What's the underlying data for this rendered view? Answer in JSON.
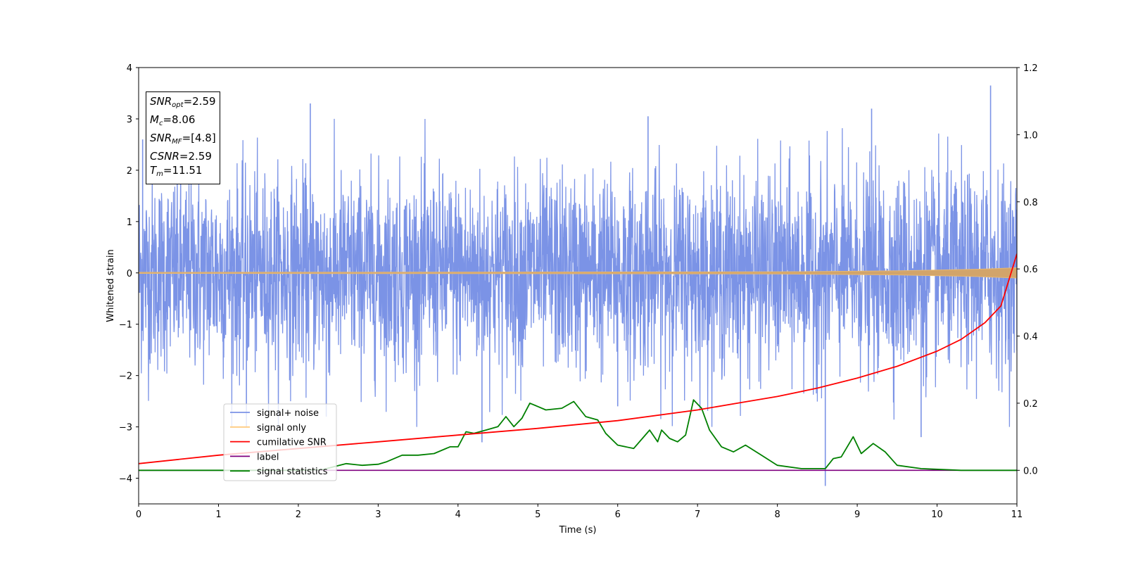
{
  "chart_data": {
    "type": "line",
    "xlabel": "Time (s)",
    "ylabel": "Whitened strain",
    "xlim": [
      0,
      11
    ],
    "ylim": [
      -4.5,
      4
    ],
    "y2lim": [
      -0.1,
      1.2
    ],
    "xticks": [
      "0",
      "1",
      "2",
      "3",
      "4",
      "5",
      "6",
      "7",
      "8",
      "9",
      "10",
      "11"
    ],
    "yticks": [
      "−4",
      "−3",
      "−2",
      "−1",
      "0",
      "1",
      "2",
      "3",
      "4"
    ],
    "y2ticks": [
      "0.0",
      "0.2",
      "0.4",
      "0.6",
      "0.8",
      "1.0",
      "1.2"
    ],
    "grid": false,
    "legend_position": "lower-left",
    "legend": [
      {
        "label": "signal+ noise",
        "color": "#7b93e6"
      },
      {
        "label": "signal only",
        "color": "#ffcc80"
      },
      {
        "label": "cumilative SNR",
        "color": "#ff0000"
      },
      {
        "label": "label",
        "color": "#800080"
      },
      {
        "label": "signal statistics",
        "color": "#008000"
      }
    ],
    "annotation": {
      "snr_opt": {
        "name": "SNR",
        "sub": "opt",
        "value": "=2.59"
      },
      "mc": {
        "name": "M",
        "sub": "c",
        "value": "=8.06"
      },
      "snr_mf": {
        "name": "SNR",
        "sub": "MF",
        "value": "=[4.8]"
      },
      "csnr": {
        "name": "CSNR",
        "value": "=2.59"
      },
      "tm": {
        "name": "T",
        "sub": "m",
        "value": "=11.51"
      }
    },
    "series": [
      {
        "name": "signal+ noise",
        "axis": "left",
        "kind": "noise",
        "description_stats": {
          "envelope_typical": [
            -2.0,
            2.0
          ],
          "min": -4.15,
          "max": 3.65
        },
        "spikes": [
          [
            2.15,
            3.3
          ],
          [
            6.38,
            3.05
          ],
          [
            9.18,
            3.2
          ],
          [
            10.67,
            3.65
          ],
          [
            0.05,
            2.6
          ],
          [
            4.3,
            -3.3
          ],
          [
            8.6,
            -4.15
          ],
          [
            9.8,
            -3.2
          ],
          [
            2.35,
            -2.8
          ],
          [
            6.0,
            -2.6
          ],
          [
            1.35,
            -3.0
          ]
        ]
      },
      {
        "name": "signal only",
        "axis": "left",
        "kind": "band",
        "points": [
          [
            0,
            0.01
          ],
          [
            5,
            0.015
          ],
          [
            8,
            0.02
          ],
          [
            9.5,
            0.04
          ],
          [
            10.5,
            0.07
          ],
          [
            11,
            0.1
          ]
        ]
      },
      {
        "name": "cumilative SNR",
        "axis": "right",
        "points": [
          [
            0,
            0.02
          ],
          [
            1,
            0.045
          ],
          [
            2,
            0.065
          ],
          [
            3,
            0.085
          ],
          [
            4,
            0.105
          ],
          [
            5,
            0.125
          ],
          [
            6,
            0.148
          ],
          [
            7,
            0.18
          ],
          [
            7.5,
            0.2
          ],
          [
            8,
            0.22
          ],
          [
            8.5,
            0.245
          ],
          [
            9,
            0.275
          ],
          [
            9.5,
            0.31
          ],
          [
            10,
            0.355
          ],
          [
            10.3,
            0.39
          ],
          [
            10.6,
            0.44
          ],
          [
            10.8,
            0.49
          ],
          [
            11,
            0.645
          ]
        ]
      },
      {
        "name": "label",
        "axis": "right",
        "points": [
          [
            0,
            0.0
          ],
          [
            11,
            0.0
          ]
        ]
      },
      {
        "name": "signal statistics",
        "axis": "right",
        "points": [
          [
            0,
            0.0
          ],
          [
            2.0,
            0.0
          ],
          [
            2.3,
            0.002
          ],
          [
            2.6,
            0.02
          ],
          [
            2.8,
            0.015
          ],
          [
            3.0,
            0.018
          ],
          [
            3.1,
            0.025
          ],
          [
            3.3,
            0.045
          ],
          [
            3.5,
            0.045
          ],
          [
            3.7,
            0.05
          ],
          [
            3.9,
            0.07
          ],
          [
            4.0,
            0.07
          ],
          [
            4.1,
            0.115
          ],
          [
            4.2,
            0.11
          ],
          [
            4.35,
            0.12
          ],
          [
            4.5,
            0.13
          ],
          [
            4.6,
            0.16
          ],
          [
            4.7,
            0.13
          ],
          [
            4.8,
            0.155
          ],
          [
            4.9,
            0.2
          ],
          [
            5.0,
            0.19
          ],
          [
            5.1,
            0.18
          ],
          [
            5.3,
            0.185
          ],
          [
            5.45,
            0.205
          ],
          [
            5.6,
            0.16
          ],
          [
            5.75,
            0.15
          ],
          [
            5.85,
            0.11
          ],
          [
            6.0,
            0.075
          ],
          [
            6.2,
            0.065
          ],
          [
            6.4,
            0.12
          ],
          [
            6.5,
            0.085
          ],
          [
            6.55,
            0.12
          ],
          [
            6.65,
            0.095
          ],
          [
            6.75,
            0.085
          ],
          [
            6.85,
            0.105
          ],
          [
            6.95,
            0.21
          ],
          [
            7.05,
            0.185
          ],
          [
            7.15,
            0.12
          ],
          [
            7.3,
            0.07
          ],
          [
            7.45,
            0.055
          ],
          [
            7.6,
            0.075
          ],
          [
            7.8,
            0.045
          ],
          [
            8.0,
            0.015
          ],
          [
            8.3,
            0.005
          ],
          [
            8.6,
            0.005
          ],
          [
            8.7,
            0.035
          ],
          [
            8.8,
            0.04
          ],
          [
            8.95,
            0.1
          ],
          [
            9.05,
            0.05
          ],
          [
            9.2,
            0.08
          ],
          [
            9.35,
            0.055
          ],
          [
            9.5,
            0.015
          ],
          [
            9.8,
            0.005
          ],
          [
            10.3,
            0.0
          ],
          [
            11,
            0.0
          ]
        ]
      }
    ]
  }
}
